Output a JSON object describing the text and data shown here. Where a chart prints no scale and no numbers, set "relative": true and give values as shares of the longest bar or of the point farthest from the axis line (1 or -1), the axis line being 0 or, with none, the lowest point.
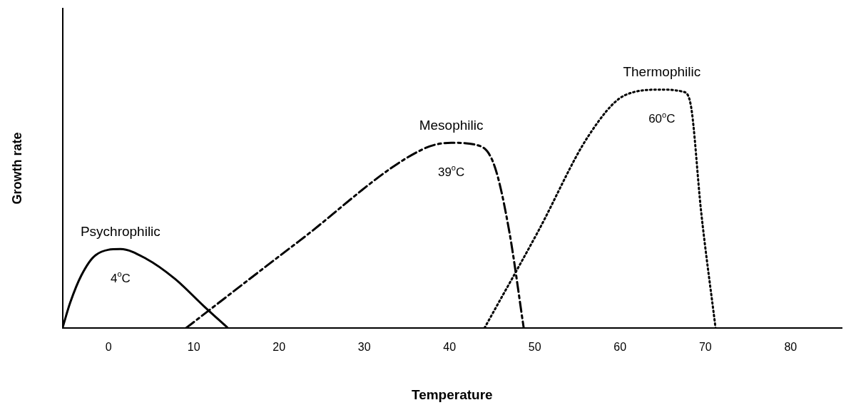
{
  "chart_data": {
    "type": "line",
    "xlabel": "Temperature",
    "ylabel": "Growth rate",
    "relative": true,
    "xlim": [
      -5.4,
      86
    ],
    "xticks": [
      0,
      10,
      20,
      30,
      40,
      50,
      60,
      70,
      80
    ],
    "grid": false,
    "legend": false,
    "marker": "none",
    "series": [
      {
        "name": "Psychrophilic",
        "color": "#000000",
        "line_style": "solid",
        "x": [
          -5.4,
          -4.5,
          -3.2,
          -1.5,
          1.4,
          4.4,
          7.8,
          11.2,
          14
        ],
        "values": [
          0,
          0.106,
          0.22,
          0.306,
          0.331,
          0.291,
          0.206,
          0.091,
          0
        ]
      },
      {
        "name": "Mesophilic",
        "color": "#000000",
        "line_style": "dashed",
        "x": [
          9.1,
          22.3,
          36.8,
          40.2,
          43.6,
          45.3,
          47,
          48.7
        ],
        "values": [
          0,
          0.363,
          0.749,
          0.777,
          0.763,
          0.677,
          0.406,
          0
        ]
      },
      {
        "name": "Thermophilic",
        "color": "#000000",
        "line_style": "dotted",
        "x": [
          44.1,
          50.4,
          56.3,
          60.6,
          64.9,
          67.4,
          68.3,
          69.5,
          71.2
        ],
        "values": [
          0,
          0.406,
          0.806,
          0.977,
          1,
          0.991,
          0.934,
          0.491,
          0
        ]
      }
    ],
    "annotations": [
      "4$^{o}$C",
      "39$^{o}$C",
      "60$^{o}$C"
    ]
  }
}
